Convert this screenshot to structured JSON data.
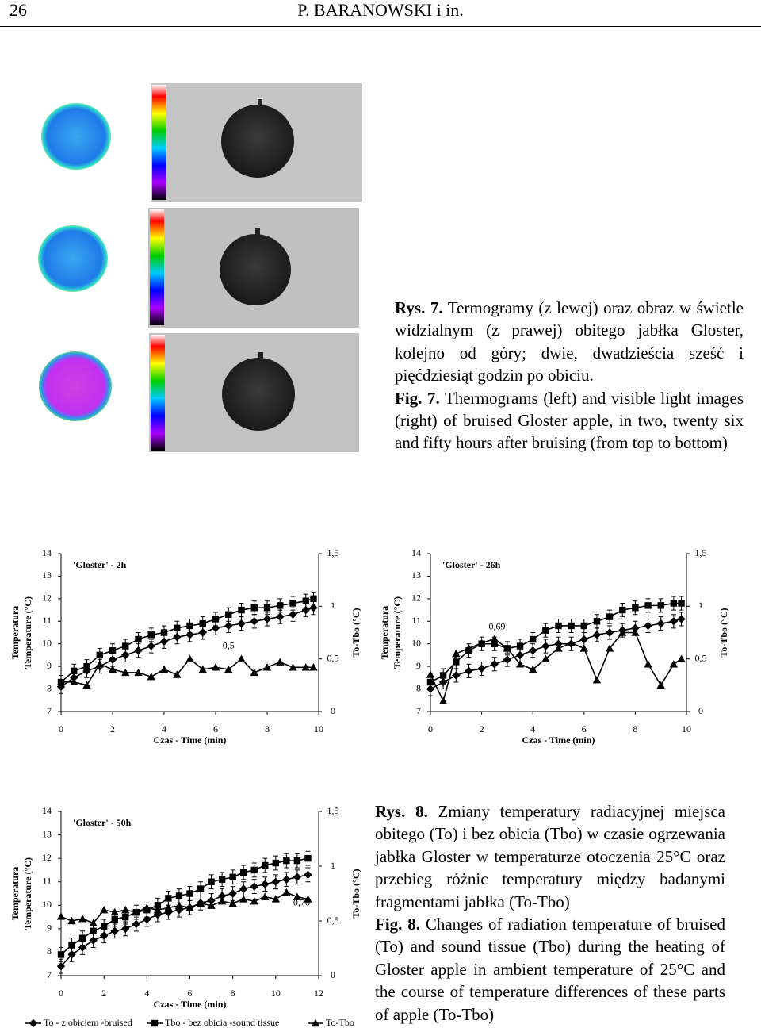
{
  "header": {
    "page": "26",
    "running_title": "P. BARANOWSKI i in."
  },
  "figure7": {
    "label_pl": "Rys. 7.",
    "caption_pl": "Termogramy (z lewej) oraz obraz w świetle widzialnym (z prawej) obitego jabłka Gloster, kolejno od góry; dwie, dwadzieścia sześć i pięćdziesiąt godzin po obiciu.",
    "label_en": "Fig. 7.",
    "caption_en": "Thermograms (left) and visible light images (right) of bruised Gloster apple, in two, twenty six and fifty hours after bruising (from top to bottom)"
  },
  "chart_data": [
    {
      "type": "line",
      "title": "'Gloster' - 2h",
      "xlabel": "Czas - Time (min)",
      "ylabel": [
        "Temperatura",
        "Temperature (°C)"
      ],
      "y2label": "To-Tbo (°C)",
      "x": [
        0,
        0.5,
        1,
        1.5,
        2,
        2.5,
        3,
        3.5,
        4,
        4.5,
        5,
        5.5,
        6,
        6.5,
        7,
        7.5,
        8,
        8.5,
        9,
        9.5,
        9.8
      ],
      "xlim": [
        0,
        10
      ],
      "xticks": [
        0,
        2,
        4,
        6,
        8,
        10
      ],
      "ylim": [
        7,
        14
      ],
      "yticks": [
        7,
        8,
        9,
        10,
        11,
        12,
        13,
        14
      ],
      "y2lim": [
        0,
        1.5
      ],
      "y2ticks": [
        0,
        {
          "value": 0.5,
          "label": "0,5"
        },
        1,
        {
          "value": 1.5,
          "label": "1,5"
        }
      ],
      "series": [
        {
          "color": "#000000",
          "marker": "diamond",
          "error": 0.3,
          "values": [
            8.1,
            8.5,
            8.8,
            9.0,
            9.3,
            9.5,
            9.7,
            9.9,
            10.1,
            10.3,
            10.4,
            10.5,
            10.7,
            10.8,
            10.9,
            11.0,
            11.1,
            11.2,
            11.3,
            11.5,
            11.6
          ]
        },
        {
          "color": "#000000",
          "marker": "square",
          "error": 0.3,
          "values": [
            8.3,
            8.8,
            9.0,
            9.5,
            9.7,
            9.9,
            10.2,
            10.4,
            10.5,
            10.7,
            10.8,
            10.9,
            11.1,
            11.3,
            11.5,
            11.6,
            11.6,
            11.7,
            11.8,
            11.9,
            12.0
          ]
        },
        {
          "color": "#000000",
          "marker": "triangle",
          "axis": "y2",
          "values": [
            0.28,
            0.28,
            0.25,
            0.45,
            0.4,
            0.37,
            0.37,
            0.33,
            0.4,
            0.35,
            0.5,
            0.4,
            0.42,
            0.4,
            0.5,
            0.37,
            0.42,
            0.47,
            0.42,
            0.42,
            0.42
          ]
        }
      ],
      "annotations": [
        {
          "text": "0,5",
          "x": 6.5,
          "y": 0.62,
          "axis": "y2"
        }
      ]
    },
    {
      "type": "line",
      "title": "'Gloster' - 26h",
      "xlabel": "Czas - Time (min)",
      "ylabel": [
        "Temperatura",
        "Temperature (°C)"
      ],
      "y2label": "To-Tbo (°C)",
      "x": [
        0,
        0.5,
        1,
        1.5,
        2,
        2.5,
        3,
        3.5,
        4,
        4.5,
        5,
        5.5,
        6,
        6.5,
        7,
        7.5,
        8,
        8.5,
        9,
        9.5,
        9.8
      ],
      "xlim": [
        0,
        10
      ],
      "xticks": [
        0,
        2,
        4,
        6,
        8,
        10
      ],
      "ylim": [
        7,
        14
      ],
      "yticks": [
        7,
        8,
        9,
        10,
        11,
        12,
        13,
        14
      ],
      "y2lim": [
        0,
        1.5
      ],
      "y2ticks": [
        0,
        {
          "value": 0.5,
          "label": "0,5"
        },
        1,
        {
          "value": 1.5,
          "label": "1,5"
        }
      ],
      "series": [
        {
          "color": "#000000",
          "marker": "diamond",
          "error": 0.3,
          "values": [
            8.0,
            8.3,
            8.6,
            8.8,
            8.9,
            9.1,
            9.3,
            9.5,
            9.7,
            9.9,
            10.0,
            10.0,
            10.2,
            10.4,
            10.5,
            10.6,
            10.7,
            10.8,
            10.9,
            11.0,
            11.1
          ]
        },
        {
          "color": "#000000",
          "marker": "square",
          "error": 0.3,
          "values": [
            8.3,
            8.6,
            9.2,
            9.7,
            10.0,
            10.0,
            9.8,
            9.9,
            10.2,
            10.6,
            10.8,
            10.8,
            10.8,
            11.0,
            11.2,
            11.5,
            11.6,
            11.7,
            11.7,
            11.8,
            11.8
          ]
        },
        {
          "color": "#000000",
          "marker": "triangle",
          "axis": "y2",
          "values": [
            0.35,
            0.1,
            0.55,
            0.6,
            0.65,
            0.69,
            0.6,
            0.45,
            0.4,
            0.5,
            0.6,
            0.65,
            0.6,
            0.3,
            0.6,
            0.75,
            0.75,
            0.45,
            0.25,
            0.45,
            0.5
          ]
        }
      ],
      "annotations": [
        {
          "text": "0,69",
          "x": 2.6,
          "y": 0.8,
          "axis": "y2"
        }
      ]
    },
    {
      "type": "line",
      "title": "'Gloster' - 50h",
      "xlabel": "Czas - Time (min)",
      "ylabel": [
        "Temperatura",
        "Temperature (°C)"
      ],
      "y2label": "To-Tbo (°C)",
      "x": [
        0,
        0.5,
        1,
        1.5,
        2,
        2.5,
        3,
        3.5,
        4,
        4.5,
        5,
        5.5,
        6,
        6.5,
        7,
        7.5,
        8,
        8.5,
        9,
        9.5,
        10,
        10.5,
        11,
        11.5
      ],
      "xlim": [
        0,
        12
      ],
      "xticks": [
        0,
        2,
        4,
        6,
        8,
        10,
        12
      ],
      "ylim": [
        7,
        14
      ],
      "yticks": [
        7,
        8,
        9,
        10,
        11,
        12,
        13,
        14
      ],
      "y2lim": [
        0,
        1.5
      ],
      "y2ticks": [
        0,
        {
          "value": 0.5,
          "label": "0,5"
        },
        1,
        {
          "value": 1.5,
          "label": "1,5"
        }
      ],
      "legend": true,
      "series": [
        {
          "name": "To - z obiciem -bruised",
          "color": "#000000",
          "marker": "diamond",
          "error": 0.3,
          "values": [
            7.4,
            7.9,
            8.2,
            8.5,
            8.7,
            8.9,
            9.0,
            9.2,
            9.4,
            9.6,
            9.7,
            9.8,
            9.9,
            10.1,
            10.2,
            10.4,
            10.5,
            10.7,
            10.8,
            10.9,
            11.0,
            11.1,
            11.2,
            11.3
          ]
        },
        {
          "name": "Tbo - bez obicia -sound tissue",
          "color": "#000000",
          "marker": "square",
          "error": 0.3,
          "values": [
            7.9,
            8.3,
            8.6,
            8.9,
            9.1,
            9.4,
            9.5,
            9.7,
            9.8,
            10.0,
            10.3,
            10.4,
            10.5,
            10.7,
            11.0,
            11.1,
            11.2,
            11.4,
            11.5,
            11.7,
            11.8,
            11.9,
            11.9,
            12.0
          ]
        },
        {
          "name": "To-Tbo",
          "color": "#000000",
          "marker": "triangle",
          "axis": "y2",
          "values": [
            0.54,
            0.5,
            0.52,
            0.48,
            0.6,
            0.58,
            0.6,
            0.58,
            0.62,
            0.6,
            0.62,
            0.64,
            0.62,
            0.66,
            0.64,
            0.68,
            0.66,
            0.7,
            0.68,
            0.72,
            0.7,
            0.76,
            0.72,
            0.7
          ]
        }
      ],
      "annotations": [
        {
          "text": "0,76",
          "x": 11.2,
          "y": 0.66,
          "axis": "y2"
        }
      ]
    }
  ],
  "figure8": {
    "label_pl": "Rys. 8.",
    "caption_pl": "Zmiany temperatury radiacyjnej miejsca obitego (To) i bez obicia (Tbo) w czasie ogrzewania jabłka Gloster w temperaturze otoczenia 25°C oraz przebieg różnic temperatury między badanymi fragmentami jabłka (To-Tbo)",
    "label_en": "Fig. 8.",
    "caption_en": "Changes of radiation temperature of bruised (To) and sound tissue (Tbo) during the heating of Gloster apple in ambient temperature of 25°C and the course of temperature differences of these parts of apple (To-Tbo)"
  }
}
